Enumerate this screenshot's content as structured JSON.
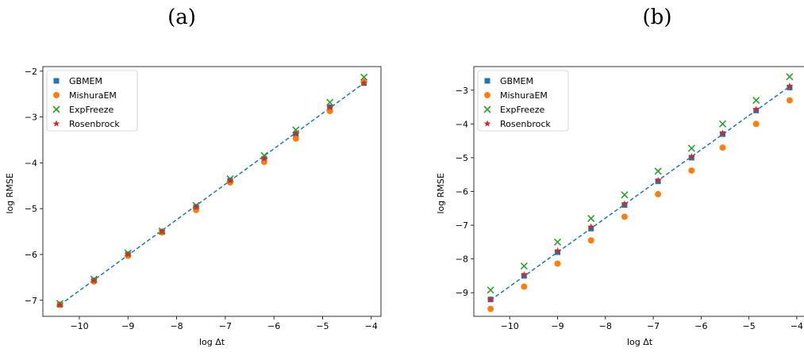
{
  "chart_data": [
    {
      "type": "scatter",
      "panel_label": "(a)",
      "xlabel": "log Δt",
      "ylabel": "log RMSE",
      "xlim": [
        -10.75,
        -3.8
      ],
      "ylim": [
        -7.35,
        -1.9
      ],
      "xticks": [
        -10,
        -9,
        -8,
        -7,
        -6,
        -5,
        -4
      ],
      "yticks": [
        -7,
        -6,
        -5,
        -4,
        -3,
        -2
      ],
      "legend": "top-left",
      "grid": false,
      "x": [
        -10.4,
        -9.7,
        -9.0,
        -8.3,
        -7.6,
        -6.9,
        -6.2,
        -5.55,
        -4.85,
        -4.15
      ],
      "fit_line": {
        "style": "dashed",
        "x": [
          -10.4,
          -4.15
        ],
        "y": [
          -7.1,
          -2.26
        ]
      },
      "series": [
        {
          "name": "GBMEM",
          "marker": "square",
          "color": "#1f77b4",
          "values": [
            -7.1,
            -6.57,
            -6.0,
            -5.5,
            -4.97,
            -4.39,
            -3.91,
            -3.38,
            -2.79,
            -2.26
          ]
        },
        {
          "name": "MishuraEM",
          "marker": "circle",
          "color": "#ff7f0e",
          "values": [
            -7.1,
            -6.59,
            -6.03,
            -5.52,
            -5.03,
            -4.43,
            -3.98,
            -3.47,
            -2.87,
            -2.23
          ]
        },
        {
          "name": "ExpFreeze",
          "marker": "x",
          "color": "#2ca02c",
          "values": [
            -7.07,
            -6.54,
            -5.97,
            -5.49,
            -4.93,
            -4.35,
            -3.84,
            -3.28,
            -2.68,
            -2.13
          ]
        },
        {
          "name": "Rosenbrock",
          "marker": "star",
          "color": "#d62728",
          "values": [
            -7.1,
            -6.57,
            -6.0,
            -5.5,
            -4.97,
            -4.39,
            -3.91,
            -3.37,
            -2.79,
            -2.26
          ]
        }
      ]
    },
    {
      "type": "scatter",
      "panel_label": "(b)",
      "xlabel": "log Δt",
      "ylabel": "log RMSE",
      "xlim": [
        -10.75,
        -3.8
      ],
      "ylim": [
        -9.7,
        -2.3
      ],
      "xticks": [
        -10,
        -9,
        -8,
        -7,
        -6,
        -5,
        -4
      ],
      "yticks": [
        -9,
        -8,
        -7,
        -6,
        -5,
        -4,
        -3
      ],
      "legend": "top-left",
      "grid": false,
      "x": [
        -10.4,
        -9.7,
        -9.0,
        -8.3,
        -7.6,
        -6.9,
        -6.2,
        -5.55,
        -4.85,
        -4.15
      ],
      "fit_line": {
        "style": "dashed",
        "x": [
          -10.4,
          -4.15
        ],
        "y": [
          -9.22,
          -2.89
        ]
      },
      "series": [
        {
          "name": "GBMEM",
          "marker": "square",
          "color": "#1f77b4",
          "values": [
            -9.2,
            -8.5,
            -7.8,
            -7.1,
            -6.4,
            -5.7,
            -5.0,
            -4.3,
            -3.6,
            -2.92
          ]
        },
        {
          "name": "MishuraEM",
          "marker": "circle",
          "color": "#ff7f0e",
          "values": [
            -9.48,
            -8.82,
            -8.14,
            -7.45,
            -6.75,
            -6.08,
            -5.38,
            -4.7,
            -4.0,
            -3.3
          ]
        },
        {
          "name": "ExpFreeze",
          "marker": "x",
          "color": "#2ca02c",
          "values": [
            -8.92,
            -8.21,
            -7.5,
            -6.8,
            -6.1,
            -5.4,
            -4.72,
            -4.0,
            -3.3,
            -2.6
          ]
        },
        {
          "name": "Rosenbrock",
          "marker": "star",
          "color": "#d62728",
          "values": [
            -9.2,
            -8.47,
            -7.76,
            -7.05,
            -6.37,
            -5.67,
            -4.97,
            -4.27,
            -3.57,
            -2.88
          ]
        }
      ]
    }
  ]
}
